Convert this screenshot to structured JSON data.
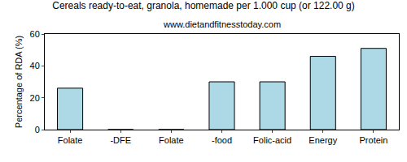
{
  "chart_data": {
    "type": "bar",
    "title": "Cereals ready-to-eat, granola, homemade per 1.000 cup (or 122.00 g)",
    "subtitle": "www.dietandfitnesstoday.com",
    "y_label": "Percentage of RDA (%)",
    "categories": [
      "Folate",
      "-DFE",
      "Folate",
      "-food",
      "Folic-acid",
      "Energy",
      "Protein"
    ],
    "values": [
      26,
      0,
      0,
      30,
      30,
      46,
      51
    ],
    "color": "#add8e6",
    "ylim": [
      0,
      60
    ],
    "yticks": [
      0,
      20,
      40,
      60
    ],
    "grid": false
  }
}
